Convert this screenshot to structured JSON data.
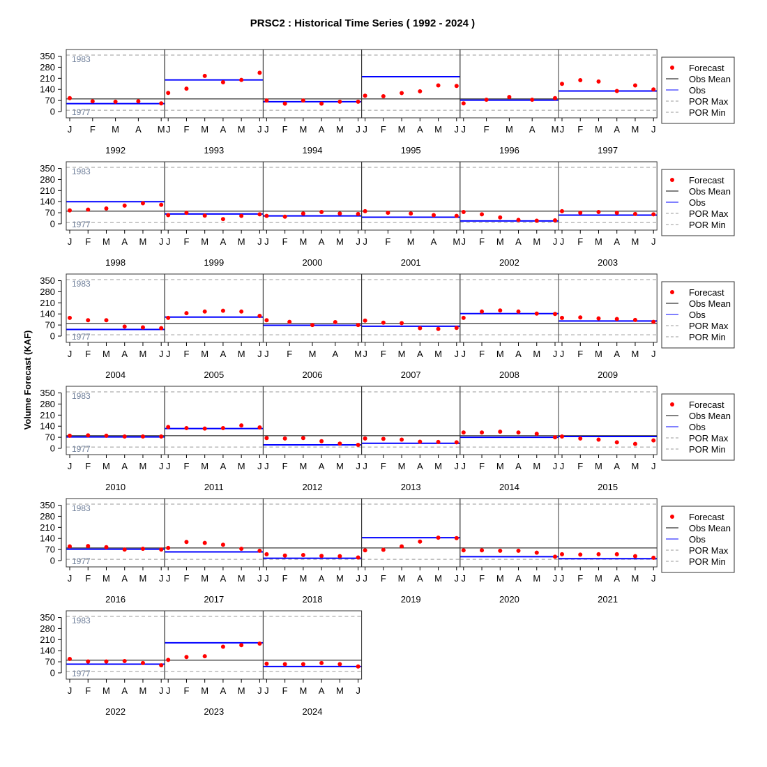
{
  "chart_data": {
    "type": "scatter",
    "title": "PRSC2 : Historical Time Series ( 1992 - 2024 )",
    "ylabel": "Volume Forecast (KAF)",
    "ylim": [
      0,
      370
    ],
    "yticks": [
      0,
      70,
      140,
      210,
      280,
      350
    ],
    "obs_mean": 80,
    "por_max": {
      "value": 357,
      "year_label": "1983"
    },
    "por_min": {
      "value": 8,
      "year_label": "1977"
    },
    "legend": [
      "Forecast",
      "Obs Mean",
      "Obs",
      "POR Max",
      "POR Min"
    ],
    "colors": {
      "forecast": "#ff0000",
      "obs": "#0000ff",
      "obs_mean": "#000000",
      "por": "#999999"
    },
    "panels": [
      {
        "year": "1992",
        "months": [
          "J",
          "F",
          "M",
          "A",
          "M"
        ],
        "forecast": [
          85,
          65,
          62,
          65,
          52
        ],
        "obs": 50
      },
      {
        "year": "1993",
        "months": [
          "J",
          "F",
          "M",
          "A",
          "M",
          "J"
        ],
        "forecast": [
          118,
          145,
          225,
          185,
          200,
          245
        ],
        "obs": 200
      },
      {
        "year": "1994",
        "months": [
          "J",
          "F",
          "M",
          "A",
          "M",
          "J"
        ],
        "forecast": [
          70,
          50,
          70,
          50,
          62,
          62
        ],
        "obs": 62
      },
      {
        "year": "1995",
        "months": [
          "J",
          "F",
          "M",
          "A",
          "M",
          "J"
        ],
        "forecast": [
          100,
          97,
          117,
          128,
          165,
          162
        ],
        "obs": 220
      },
      {
        "year": "1996",
        "months": [
          "J",
          "F",
          "M",
          "A",
          "M"
        ],
        "forecast": [
          52,
          75,
          92,
          75,
          85
        ],
        "obs": 72
      },
      {
        "year": "1997",
        "months": [
          "J",
          "F",
          "M",
          "A",
          "M",
          "J"
        ],
        "forecast": [
          175,
          198,
          190,
          130,
          165,
          140
        ],
        "obs": 130
      },
      {
        "year": "1998",
        "months": [
          "J",
          "F",
          "M",
          "A",
          "M",
          "J"
        ],
        "forecast": [
          85,
          90,
          97,
          115,
          130,
          120
        ],
        "obs": 140
      },
      {
        "year": "1999",
        "months": [
          "J",
          "F",
          "M",
          "A",
          "M",
          "J"
        ],
        "forecast": [
          55,
          70,
          52,
          30,
          50,
          60
        ],
        "obs": 62
      },
      {
        "year": "2000",
        "months": [
          "J",
          "F",
          "M",
          "A",
          "M",
          "J"
        ],
        "forecast": [
          50,
          45,
          65,
          75,
          65,
          62
        ],
        "obs": 50
      },
      {
        "year": "2001",
        "months": [
          "J",
          "F",
          "M",
          "A",
          "M"
        ],
        "forecast": [
          80,
          70,
          65,
          55,
          50
        ],
        "obs": 42
      },
      {
        "year": "2002",
        "months": [
          "J",
          "F",
          "M",
          "A",
          "M",
          "J"
        ],
        "forecast": [
          75,
          60,
          40,
          25,
          20,
          22
        ],
        "obs": 18
      },
      {
        "year": "2003",
        "months": [
          "J",
          "F",
          "M",
          "A",
          "M",
          "J"
        ],
        "forecast": [
          80,
          70,
          75,
          70,
          62,
          60
        ],
        "obs": 55
      },
      {
        "year": "2004",
        "months": [
          "J",
          "F",
          "M",
          "A",
          "M",
          "J"
        ],
        "forecast": [
          115,
          100,
          100,
          60,
          55,
          50
        ],
        "obs": 42
      },
      {
        "year": "2005",
        "months": [
          "J",
          "F",
          "M",
          "A",
          "M",
          "J"
        ],
        "forecast": [
          115,
          145,
          155,
          160,
          155,
          128
        ],
        "obs": 120
      },
      {
        "year": "2006",
        "months": [
          "J",
          "F",
          "M",
          "A",
          "M"
        ],
        "forecast": [
          100,
          90,
          70,
          88,
          70
        ],
        "obs": 68
      },
      {
        "year": "2007",
        "months": [
          "J",
          "F",
          "M",
          "A",
          "M",
          "J"
        ],
        "forecast": [
          98,
          85,
          82,
          50,
          45,
          52
        ],
        "obs": 62
      },
      {
        "year": "2008",
        "months": [
          "J",
          "F",
          "M",
          "A",
          "M",
          "J"
        ],
        "forecast": [
          115,
          155,
          162,
          155,
          142,
          140
        ],
        "obs": 142
      },
      {
        "year": "2009",
        "months": [
          "J",
          "F",
          "M",
          "A",
          "M",
          "J"
        ],
        "forecast": [
          115,
          118,
          112,
          108,
          102,
          90
        ],
        "obs": 95
      },
      {
        "year": "2010",
        "months": [
          "J",
          "F",
          "M",
          "A",
          "M",
          "J"
        ],
        "forecast": [
          80,
          82,
          80,
          75,
          75,
          75
        ],
        "obs": 72
      },
      {
        "year": "2011",
        "months": [
          "J",
          "F",
          "M",
          "A",
          "M",
          "J"
        ],
        "forecast": [
          135,
          128,
          125,
          128,
          145,
          132
        ],
        "obs": 125
      },
      {
        "year": "2012",
        "months": [
          "J",
          "F",
          "M",
          "A",
          "M",
          "J"
        ],
        "forecast": [
          65,
          62,
          65,
          45,
          30,
          22
        ],
        "obs": 22
      },
      {
        "year": "2013",
        "months": [
          "J",
          "F",
          "M",
          "A",
          "M",
          "J"
        ],
        "forecast": [
          62,
          60,
          55,
          42,
          40,
          38
        ],
        "obs": 32
      },
      {
        "year": "2014",
        "months": [
          "J",
          "F",
          "M",
          "A",
          "M",
          "J"
        ],
        "forecast": [
          100,
          100,
          105,
          100,
          92,
          70
        ],
        "obs": 70
      },
      {
        "year": "2015",
        "months": [
          "J",
          "F",
          "M",
          "A",
          "M",
          "J"
        ],
        "forecast": [
          75,
          62,
          55,
          38,
          28,
          50
        ],
        "obs": 75
      },
      {
        "year": "2016",
        "months": [
          "J",
          "F",
          "M",
          "A",
          "M",
          "J"
        ],
        "forecast": [
          90,
          92,
          85,
          70,
          75,
          70
        ],
        "obs": 72
      },
      {
        "year": "2017",
        "months": [
          "J",
          "F",
          "M",
          "A",
          "M",
          "J"
        ],
        "forecast": [
          80,
          118,
          112,
          100,
          75,
          62
        ],
        "obs": 55
      },
      {
        "year": "2018",
        "months": [
          "J",
          "F",
          "M",
          "A",
          "M",
          "J"
        ],
        "forecast": [
          40,
          32,
          35,
          30,
          28,
          20
        ],
        "obs": 15
      },
      {
        "year": "2019",
        "months": [
          "J",
          "F",
          "M",
          "A",
          "M",
          "J"
        ],
        "forecast": [
          65,
          68,
          90,
          120,
          145,
          142
        ],
        "obs": 145
      },
      {
        "year": "2020",
        "months": [
          "J",
          "F",
          "M",
          "A",
          "M",
          "J"
        ],
        "forecast": [
          65,
          65,
          62,
          62,
          50,
          25
        ],
        "obs": 25
      },
      {
        "year": "2021",
        "months": [
          "J",
          "F",
          "M",
          "A",
          "M",
          "J"
        ],
        "forecast": [
          40,
          38,
          40,
          40,
          28,
          18
        ],
        "obs": 12
      },
      {
        "year": "2022",
        "months": [
          "J",
          "F",
          "M",
          "A",
          "M",
          "J"
        ],
        "forecast": [
          88,
          72,
          72,
          75,
          62,
          48
        ],
        "obs": 55
      },
      {
        "year": "2023",
        "months": [
          "J",
          "F",
          "M",
          "A",
          "M",
          "J"
        ],
        "forecast": [
          82,
          100,
          105,
          165,
          175,
          185
        ],
        "obs": 190
      },
      {
        "year": "2024",
        "months": [
          "J",
          "F",
          "M",
          "A",
          "M",
          "J"
        ],
        "forecast": [
          58,
          55,
          55,
          62,
          55,
          40
        ],
        "obs": 40
      }
    ]
  }
}
